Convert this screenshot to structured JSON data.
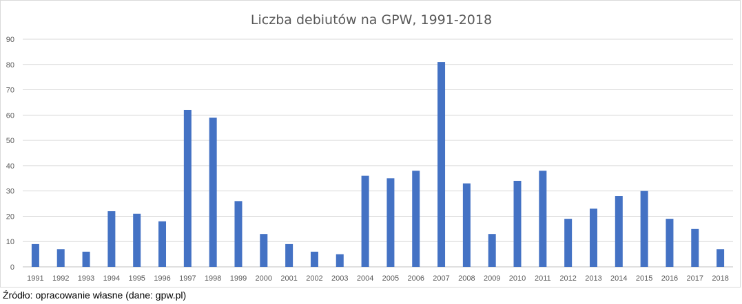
{
  "chart_data": {
    "type": "bar",
    "title": "Liczba debiutów na GPW, 1991-2018",
    "xlabel": "",
    "ylabel": "",
    "categories": [
      "1991",
      "1992",
      "1993",
      "1994",
      "1995",
      "1996",
      "1997",
      "1998",
      "1999",
      "2000",
      "2001",
      "2002",
      "2003",
      "2004",
      "2005",
      "2006",
      "2007",
      "2008",
      "2009",
      "2010",
      "2011",
      "2012",
      "2013",
      "2014",
      "2015",
      "2016",
      "2017",
      "2018"
    ],
    "values": [
      9,
      7,
      6,
      22,
      21,
      18,
      62,
      59,
      26,
      13,
      9,
      6,
      5,
      36,
      35,
      38,
      81,
      33,
      13,
      34,
      38,
      19,
      23,
      28,
      30,
      19,
      15,
      7
    ],
    "ylim": [
      0,
      90
    ],
    "yticks": [
      0,
      10,
      20,
      30,
      40,
      50,
      60,
      70,
      80,
      90
    ],
    "grid": true,
    "legend": "none",
    "bar_color": "#4472c4"
  },
  "source_note": "Źródło: opracowanie własne (dane: gpw.pl)"
}
